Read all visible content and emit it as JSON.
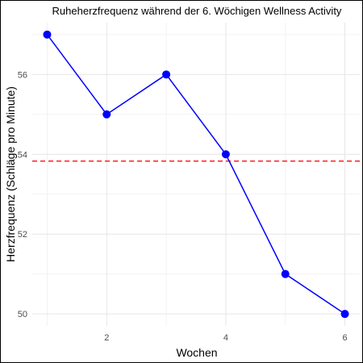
{
  "chart_data": {
    "type": "line",
    "title": "Ruheherzfrequenz während der 6. Wöchigen Wellness Activity",
    "xlabel": "Wochen",
    "ylabel": "Herzfrequenz (Schläge pro Minute)",
    "x": [
      1,
      2,
      3,
      4,
      5,
      6
    ],
    "series": [
      {
        "values": [
          57,
          55,
          56,
          54,
          51,
          50
        ],
        "color": "#0000ff"
      }
    ],
    "reference_line": {
      "y": 53.83,
      "color": "#ff2b2b",
      "style": "dashed"
    },
    "xlim": [
      0.75,
      6.25
    ],
    "ylim": [
      49.7,
      57.3
    ],
    "x_ticks": [
      2,
      4,
      6
    ],
    "y_ticks": [
      50,
      52,
      54,
      56
    ],
    "grid": true,
    "legend": "none"
  }
}
